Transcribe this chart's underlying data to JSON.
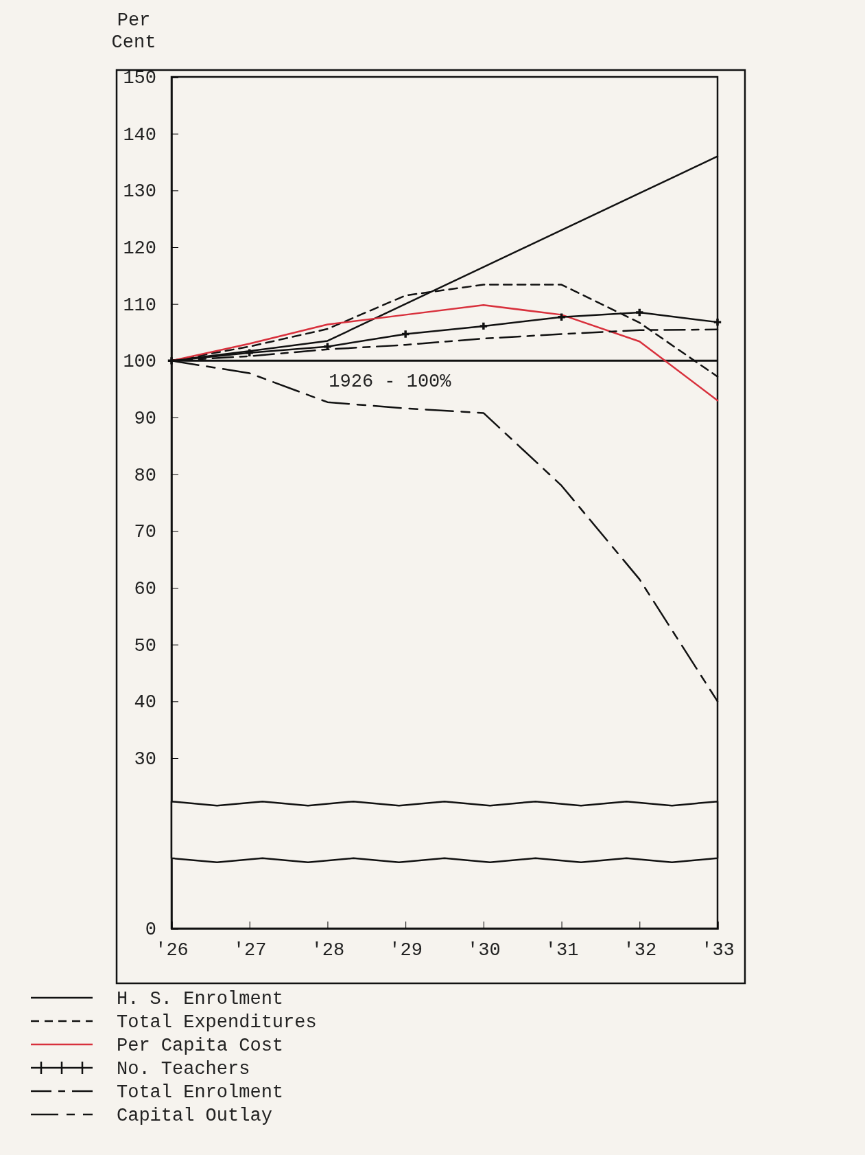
{
  "chart_data": {
    "type": "line",
    "ylabel": "Per Cent",
    "x": [
      1926,
      1927,
      1928,
      1929,
      1930,
      1931,
      1932,
      1933
    ],
    "xlim": [
      1926,
      1933
    ],
    "xticks": [
      {
        "value": 1926,
        "label": "'26"
      },
      {
        "value": 1927,
        "label": "'27"
      },
      {
        "value": 1928,
        "label": "'28"
      },
      {
        "value": 1929,
        "label": "'29"
      },
      {
        "value": 1930,
        "label": "'30"
      },
      {
        "value": 1931,
        "label": "'31"
      },
      {
        "value": 1932,
        "label": "'32"
      },
      {
        "value": 1933,
        "label": "'33"
      }
    ],
    "ylim": [
      0,
      150
    ],
    "yticks": [
      0,
      30,
      40,
      50,
      60,
      70,
      80,
      90,
      100,
      110,
      120,
      130,
      140,
      150
    ],
    "series": [
      {
        "name": "H. S. Enrolment",
        "color": "#111111",
        "line_style": "solid",
        "values": [
          100,
          101.7,
          103.5,
          110,
          116.5,
          123,
          129.5,
          136
        ]
      },
      {
        "name": "Total Expenditures",
        "color": "#111111",
        "line_style": "dashed",
        "values": [
          100,
          102.5,
          105.6,
          111.5,
          113.4,
          113.4,
          106.7,
          97.2
        ]
      },
      {
        "name": "Per Capita Cost",
        "color": "#d8303c",
        "line_style": "solid",
        "values": [
          100,
          103,
          106.4,
          108.1,
          109.8,
          108.1,
          103.4,
          93
        ]
      },
      {
        "name": "No. Teachers",
        "color": "#111111",
        "line_style": "solid",
        "marker": "cross",
        "values": [
          100,
          101.4,
          102.5,
          104.7,
          106.1,
          107.7,
          108.5,
          106.8
        ]
      },
      {
        "name": "Total Enrolment",
        "color": "#111111",
        "line_style": "dashed",
        "values": [
          100,
          100.8,
          102,
          102.8,
          103.9,
          104.7,
          105.4,
          105.5
        ]
      },
      {
        "name": "Capital Outlay",
        "color": "#111111",
        "line_style": "dashed",
        "values": [
          100,
          97.8,
          92.7,
          91.6,
          90.8,
          78,
          61.5,
          40
        ]
      }
    ],
    "ref_lines": [
      {
        "axis": "y",
        "value": 100,
        "color": "#111111"
      }
    ],
    "annotations": [
      "1926 - 100%"
    ],
    "legend": "bottom left",
    "grid": false
  }
}
